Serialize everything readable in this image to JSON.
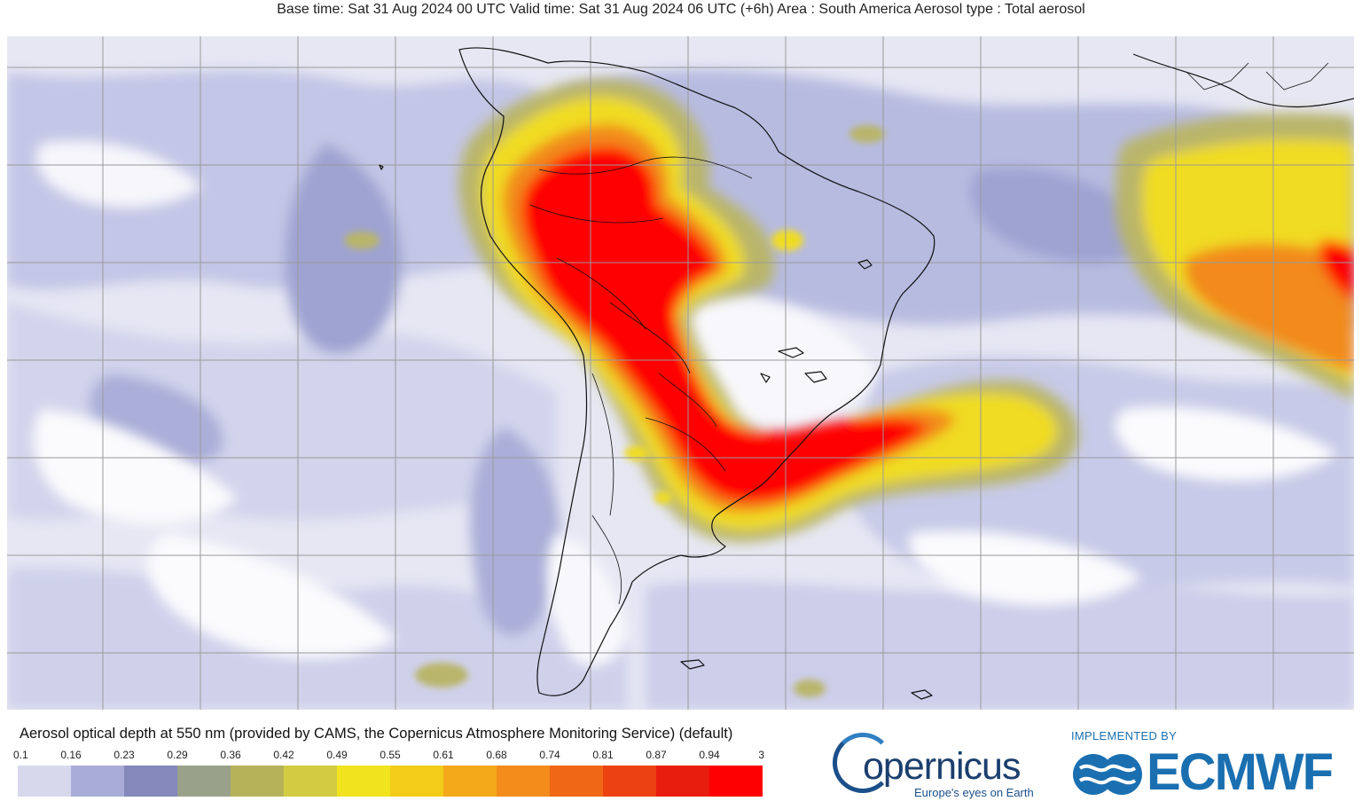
{
  "header": {
    "title": "Base time: Sat 31 Aug 2024 00 UTC Valid time: Sat 31 Aug 2024 06 UTC (+6h) Area : South America Aerosol type : Total aerosol"
  },
  "map": {
    "region": "South America",
    "aerosol_type": "Total aerosol",
    "quantity": "Aerosol optical depth at 550 nm",
    "plume_colors": {
      "very_light": "#e8e8f3",
      "light_purple": "#b9bde0",
      "purple": "#9a9fcf",
      "olive": "#a9a97a",
      "khaki": "#c9c25a",
      "yellow": "#f2dc1c",
      "gold": "#f5b912",
      "orange": "#f08a1a",
      "dark_orange": "#f05a14",
      "red": "#fe0000"
    }
  },
  "legend": {
    "title": "Aerosol optical depth at 550 nm (provided by CAMS, the Copernicus Atmosphere Monitoring Service) (default)",
    "ticks": [
      "0.1",
      "0.16",
      "0.23",
      "0.29",
      "0.36",
      "0.42",
      "0.49",
      "0.55",
      "0.61",
      "0.68",
      "0.74",
      "0.81",
      "0.87",
      "0.94",
      "3"
    ],
    "colors": [
      "#d7d8ec",
      "#a9acd6",
      "#8488bb",
      "#9aa18a",
      "#b6b25a",
      "#d3cc43",
      "#f1e41e",
      "#f3cc19",
      "#f4a91b",
      "#f38c1b",
      "#f06716",
      "#ec4111",
      "#e81e0c",
      "#fe0000"
    ]
  },
  "logos": {
    "copernicus_wordmark": "opernicus",
    "copernicus_tagline": "Europe's eyes on Earth",
    "ecmwf_implemented": "IMPLEMENTED BY",
    "ecmwf_wordmark": "ECMWF"
  }
}
